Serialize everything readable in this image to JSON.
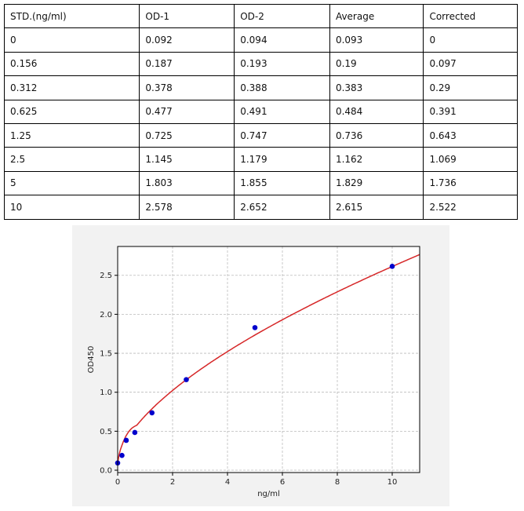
{
  "table": {
    "headers": [
      "STD.(ng/ml)",
      "OD-1",
      "OD-2",
      "Average",
      "Corrected"
    ],
    "rows": [
      [
        "0",
        "0.092",
        "0.094",
        "0.093",
        "0"
      ],
      [
        "0.156",
        "0.187",
        "0.193",
        "0.19",
        "0.097"
      ],
      [
        "0.312",
        "0.378",
        "0.388",
        "0.383",
        "0.29"
      ],
      [
        "0.625",
        "0.477",
        "0.491",
        "0.484",
        "0.391"
      ],
      [
        "1.25",
        "0.725",
        "0.747",
        "0.736",
        "0.643"
      ],
      [
        "2.5",
        "1.145",
        "1.179",
        "1.162",
        "1.069"
      ],
      [
        "5",
        "1.803",
        "1.855",
        "1.829",
        "1.736"
      ],
      [
        "10",
        "2.578",
        "2.652",
        "2.615",
        "2.522"
      ]
    ]
  },
  "chart_data": {
    "type": "scatter",
    "xlabel": "ng/ml",
    "ylabel": "OD450",
    "xlim": [
      0,
      11
    ],
    "ylim": [
      -0.03,
      2.87
    ],
    "xticks": [
      "0",
      "2",
      "4",
      "6",
      "8",
      "10"
    ],
    "yticks": [
      "0.0",
      "0.5",
      "1.0",
      "1.5",
      "2.0",
      "2.5"
    ],
    "grid": true,
    "points": {
      "x": [
        0,
        0.156,
        0.312,
        0.625,
        1.25,
        2.5,
        5,
        10
      ],
      "y": [
        0.093,
        0.19,
        0.383,
        0.484,
        0.736,
        1.162,
        1.829,
        2.615
      ],
      "color": "#0000cc"
    },
    "fit_curve": {
      "color": "#d62728"
    }
  }
}
